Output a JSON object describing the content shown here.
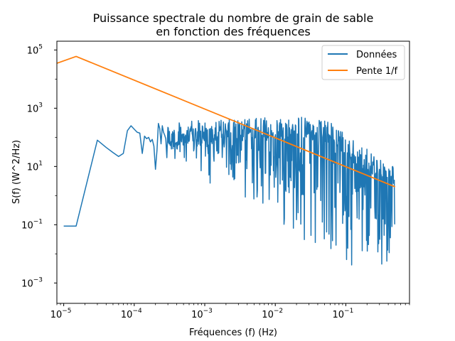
{
  "chart_data": {
    "type": "line",
    "title_line1": "Puissance spectrale du nombre de grain de sable",
    "title_line2": "en fonction des fréquences",
    "xlabel": "Fréquences (f) (Hz)",
    "ylabel": "S(f) (W^2/Hz)",
    "xscale": "log",
    "yscale": "log",
    "xlim": [
      8e-06,
      0.8
    ],
    "ylim": [
      0.0002,
      200000
    ],
    "x_ticks": [
      {
        "value": 1e-05,
        "base": "10",
        "exp": "−5"
      },
      {
        "value": 0.0001,
        "base": "10",
        "exp": "−4"
      },
      {
        "value": 0.001,
        "base": "10",
        "exp": "−3"
      },
      {
        "value": 0.01,
        "base": "10",
        "exp": "−2"
      },
      {
        "value": 0.1,
        "base": "10",
        "exp": "−1"
      }
    ],
    "y_ticks": [
      {
        "value": 100000.0,
        "base": "10",
        "exp": "5"
      },
      {
        "value": 1000.0,
        "base": "10",
        "exp": "3"
      },
      {
        "value": 10.0,
        "base": "10",
        "exp": "1"
      },
      {
        "value": 0.1,
        "base": "10",
        "exp": "−1"
      },
      {
        "value": 0.001,
        "base": "10",
        "exp": "−3"
      }
    ],
    "grid": false,
    "legend_position": "top-right",
    "series": [
      {
        "name": "Données",
        "color": "#1f77b4",
        "x": [
          1e-05,
          1.5e-05,
          3e-05,
          4e-05,
          5e-05,
          6e-05,
          7e-05,
          8e-05,
          9e-05,
          0.0001,
          0.00011,
          0.00012,
          0.00013,
          0.00014,
          0.00015,
          0.00016,
          0.00017,
          0.00018,
          0.00019,
          0.0002,
          0.00021,
          0.00022,
          0.00023,
          0.00024,
          0.00025,
          0.00026,
          0.00027,
          0.00028,
          0.00029,
          0.0003
        ],
        "y": [
          0.09,
          0.09,
          80,
          45,
          30,
          22,
          28,
          170,
          250,
          190,
          150,
          140,
          28,
          110,
          90,
          100,
          70,
          85,
          50,
          8,
          35,
          300,
          200,
          60,
          250,
          150,
          120,
          90,
          20,
          220
        ],
        "noise_band": {
          "x_start": 0.0003,
          "x_end": 0.5,
          "note": "dense fluctuating segment",
          "upper_envelope": [
            [
              0.0003,
              300
            ],
            [
              0.001,
              400
            ],
            [
              0.005,
              450
            ],
            [
              0.02,
              550
            ],
            [
              0.06,
              350
            ],
            [
              0.15,
              60
            ],
            [
              0.5,
              10
            ]
          ],
          "lower_envelope": [
            [
              0.0003,
              10
            ],
            [
              0.001,
              3
            ],
            [
              0.005,
              0.5
            ],
            [
              0.02,
              0.05
            ],
            [
              0.06,
              0.005
            ],
            [
              0.15,
              0.002
            ],
            [
              0.5,
              0.005
            ]
          ]
        }
      },
      {
        "name": "Pente 1/f",
        "color": "#ff7f0e",
        "x": [
          8e-06,
          1.5e-05,
          0.5
        ],
        "y": [
          35000,
          60000,
          2
        ]
      }
    ]
  }
}
